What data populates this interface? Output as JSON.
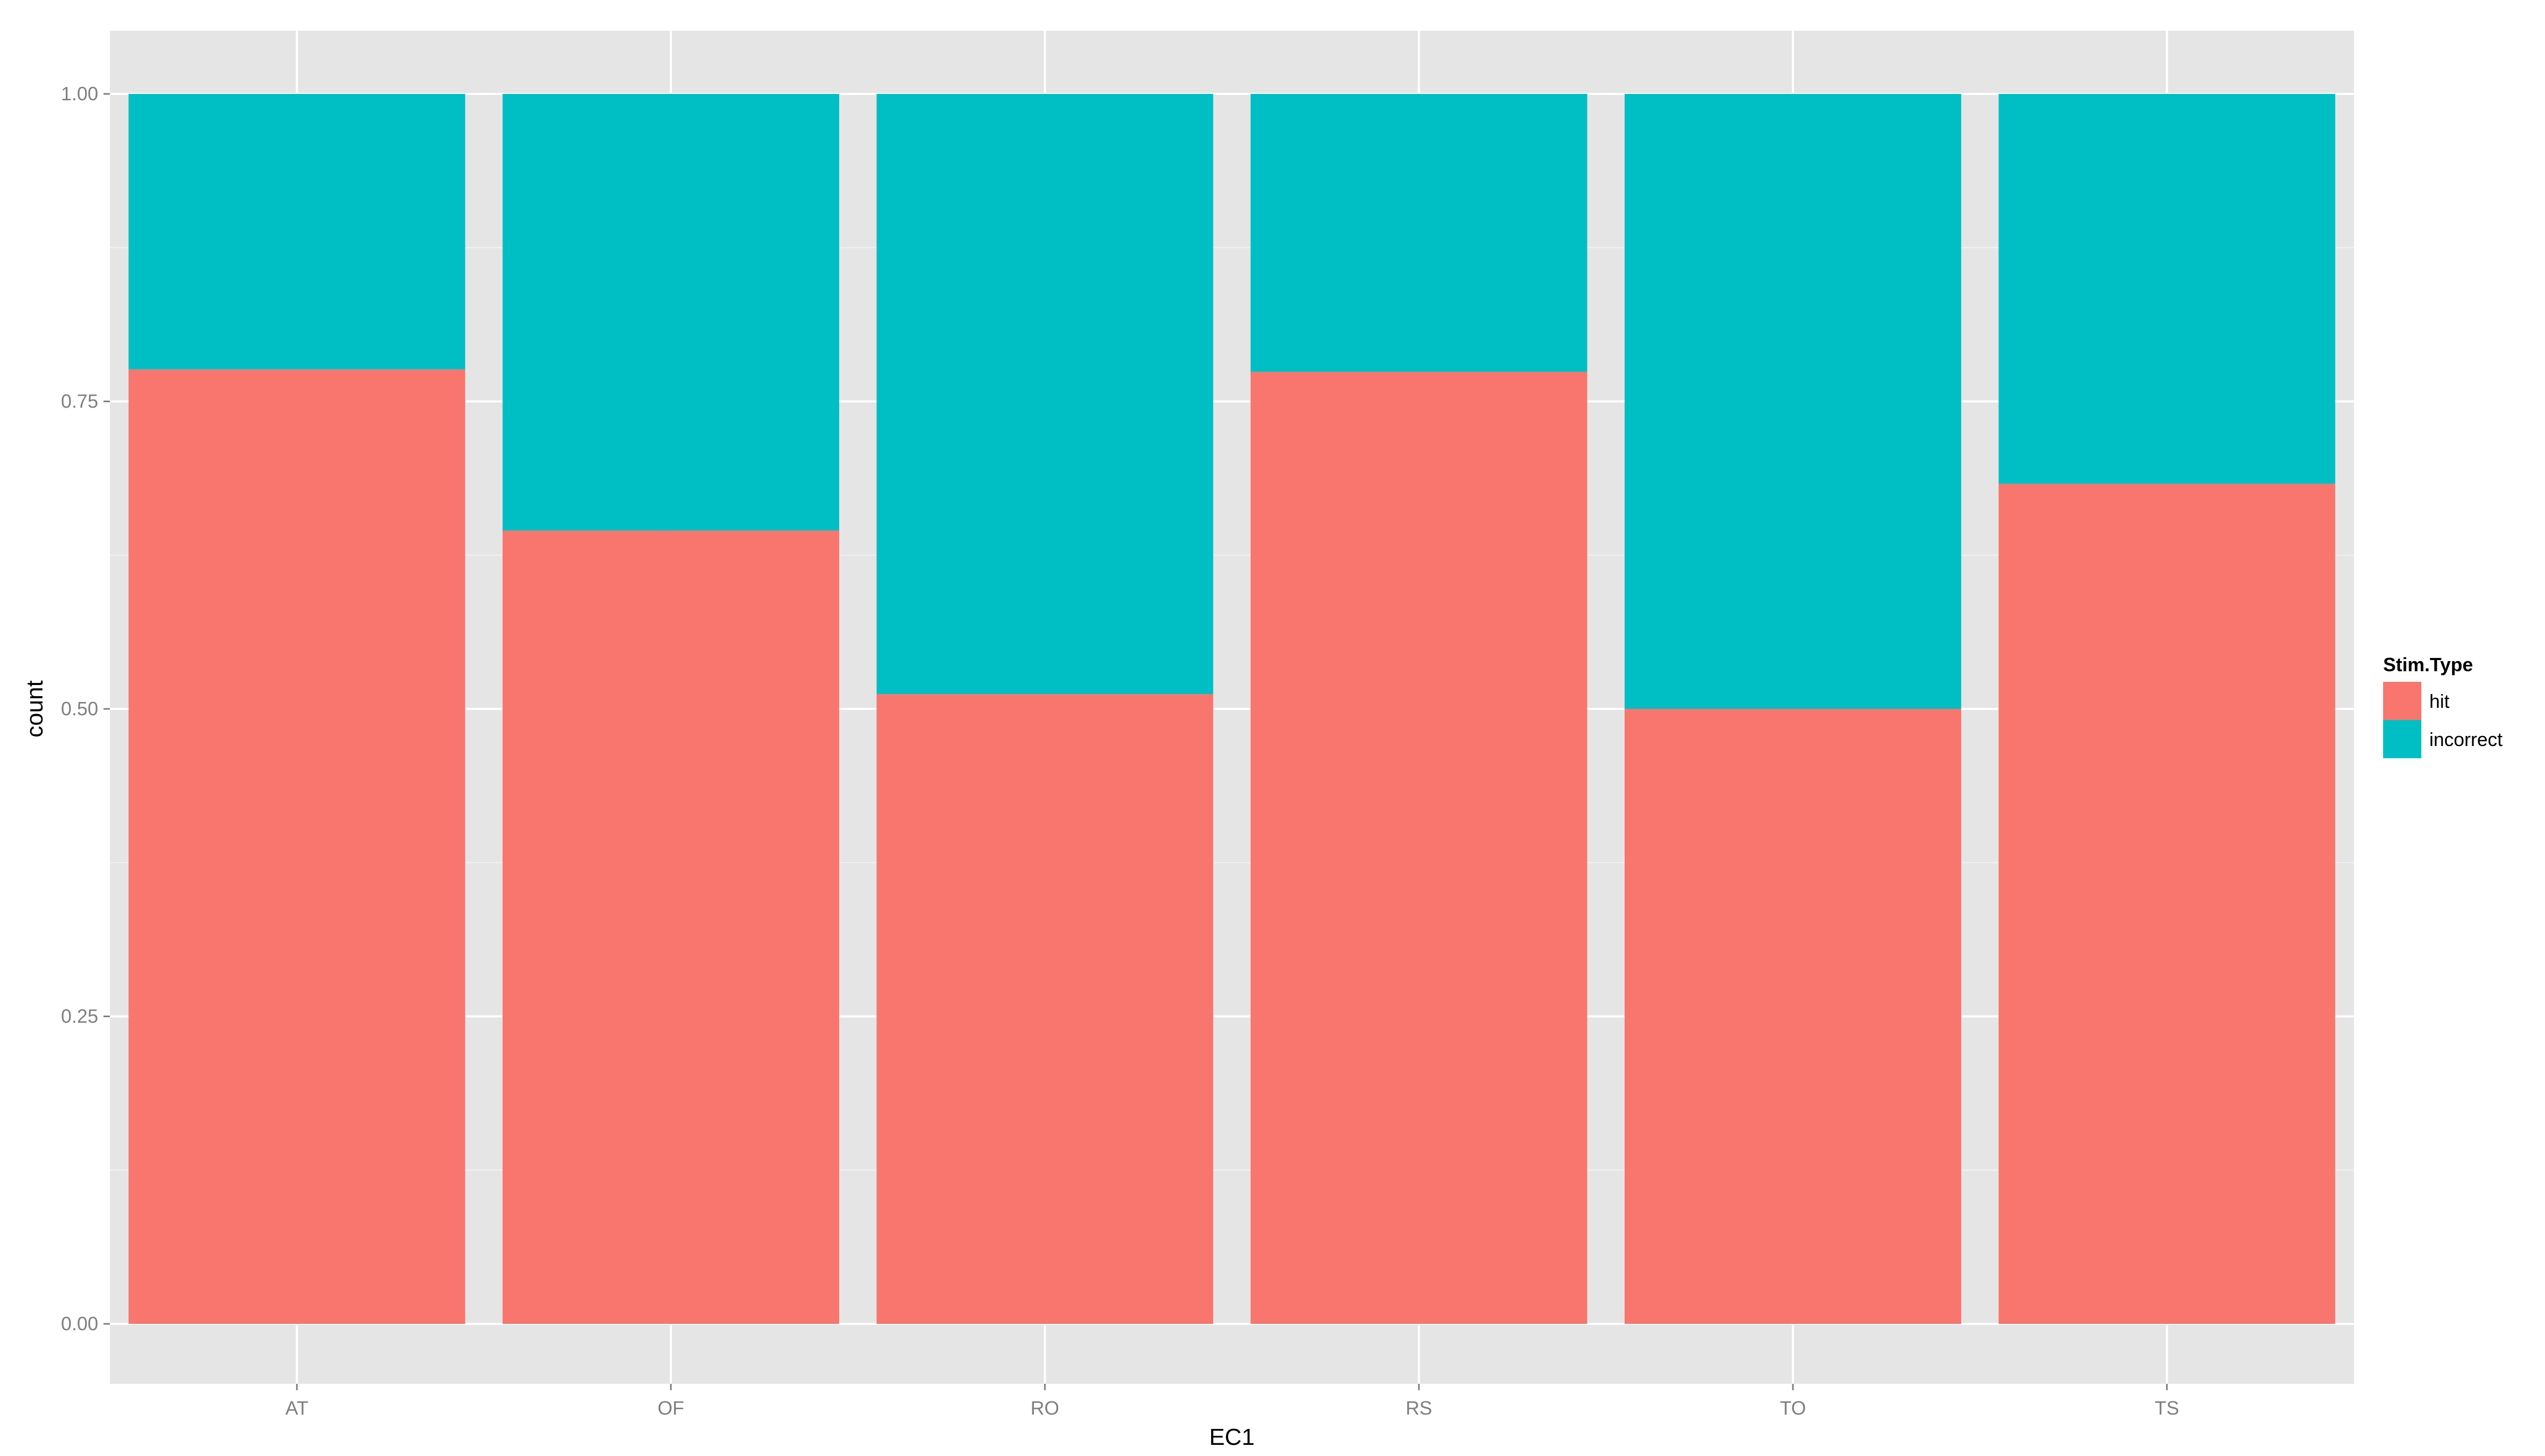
{
  "chart_data": {
    "type": "bar",
    "stacked": true,
    "categories": [
      "AT",
      "OF",
      "RO",
      "RS",
      "TO",
      "TS"
    ],
    "series": [
      {
        "name": "hit",
        "values": [
          0.776,
          0.645,
          0.512,
          0.774,
          0.5,
          0.683
        ]
      },
      {
        "name": "incorrect",
        "values": [
          0.224,
          0.355,
          0.488,
          0.226,
          0.5,
          0.317
        ]
      }
    ],
    "xlabel": "EC1",
    "ylabel": "count",
    "ylim": [
      -0.05,
      1.05
    ],
    "y_ticks": [
      0.0,
      0.25,
      0.5,
      0.75,
      1.0
    ],
    "y_tick_labels": [
      "0.00",
      "0.25",
      "0.50",
      "0.75",
      "1.00"
    ],
    "grid": true,
    "legend_position": "right",
    "legend": {
      "title": "Stim.Type",
      "items": [
        "hit",
        "incorrect"
      ]
    },
    "colors": {
      "hit": "#F8766D",
      "incorrect": "#00BFC4",
      "panel_background": "#E5E5E5",
      "gridline": "#FFFFFF",
      "tick_text": "#7F7F7F"
    }
  }
}
